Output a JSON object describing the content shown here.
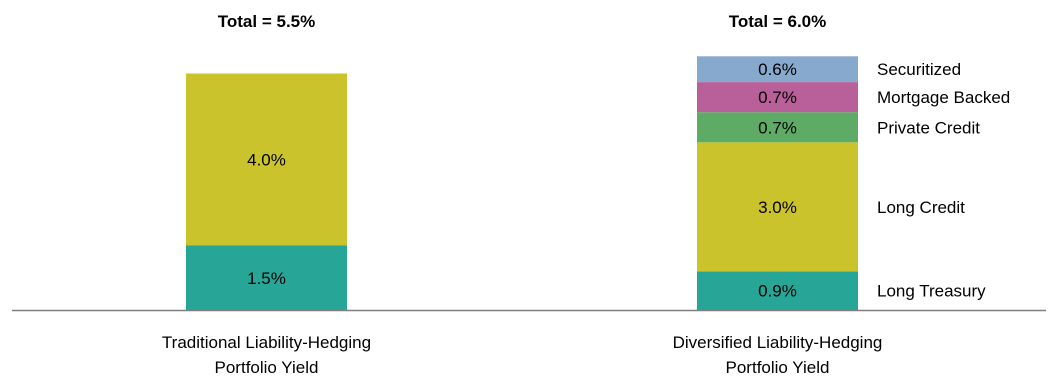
{
  "chart_data": {
    "type": "bar",
    "stacked": true,
    "categories": [
      "Traditional Liability-Hedging Portfolio Yield",
      "Diversified Liability-Hedging Portfolio Yield"
    ],
    "category_lines": [
      [
        "Traditional Liability-Hedging",
        "Portfolio Yield"
      ],
      [
        "Diversified Liability-Hedging",
        "Portfolio Yield"
      ]
    ],
    "totals": [
      "Total = 5.5%",
      "Total = 6.0%"
    ],
    "total_values": [
      5.5,
      6.0
    ],
    "series": [
      {
        "name": "Long Treasury",
        "values": [
          1.5,
          0.9
        ],
        "color": "#27A596",
        "labels": [
          "1.5%",
          "0.9%"
        ]
      },
      {
        "name": "Long Credit",
        "values": [
          4.0,
          3.0
        ],
        "color": "#CBC32C",
        "labels": [
          "4.0%",
          "3.0%"
        ]
      },
      {
        "name": "Private Credit",
        "values": [
          0.0,
          0.7
        ],
        "color": "#5DAB64",
        "labels": [
          "",
          "0.7%"
        ]
      },
      {
        "name": "Mortgage Backed",
        "values": [
          0.0,
          0.7
        ],
        "color": "#B95F99",
        "labels": [
          "",
          "0.7%"
        ]
      },
      {
        "name": "Securitized",
        "values": [
          0.0,
          0.6
        ],
        "color": "#87A9CD",
        "labels": [
          "",
          "0.6%"
        ]
      }
    ],
    "ylim": [
      0,
      6.0
    ],
    "legend_position": "right of second bar",
    "grid": false,
    "axis_color": "#7F7F7F"
  }
}
